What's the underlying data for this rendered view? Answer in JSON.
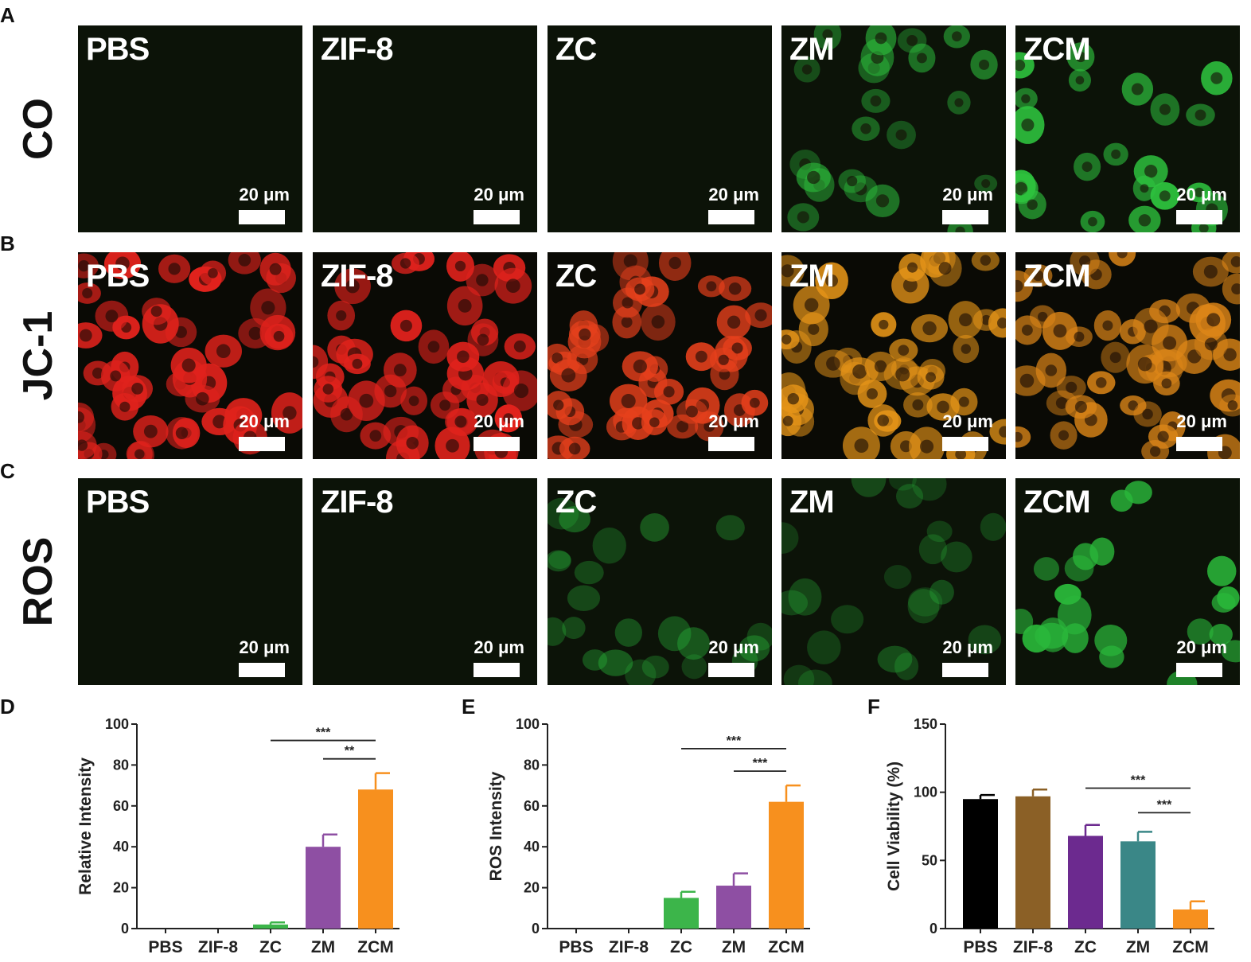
{
  "panel_letters": [
    "A",
    "B",
    "C",
    "D",
    "E",
    "F"
  ],
  "rows": [
    {
      "label": "CO",
      "color": "#2ec23e",
      "panels": [
        {
          "name": "PBS",
          "level": 0
        },
        {
          "name": "ZIF-8",
          "level": 0
        },
        {
          "name": "ZC",
          "level": 0
        },
        {
          "name": "ZM",
          "level": 0.6
        },
        {
          "name": "ZCM",
          "level": 0.95
        }
      ]
    },
    {
      "label": "JC-1",
      "color": "#e0221c",
      "panels": [
        {
          "name": "PBS",
          "level": 1,
          "tone": "#e0221c"
        },
        {
          "name": "ZIF-8",
          "level": 1,
          "tone": "#e0221c"
        },
        {
          "name": "ZC",
          "level": 0.9,
          "tone": "#e6401c"
        },
        {
          "name": "ZM",
          "level": 0.9,
          "tone": "#e59418"
        },
        {
          "name": "ZCM",
          "level": 0.85,
          "tone": "#dd8618"
        }
      ]
    },
    {
      "label": "ROS",
      "color": "#2ab73a",
      "panels": [
        {
          "name": "PBS",
          "level": 0
        },
        {
          "name": "ZIF-8",
          "level": 0
        },
        {
          "name": "ZC",
          "level": 0.45
        },
        {
          "name": "ZM",
          "level": 0.35
        },
        {
          "name": "ZCM",
          "level": 0.95
        }
      ]
    }
  ],
  "scalebar_label": "20 μm",
  "chart_data": [
    {
      "type": "bar",
      "panel": "D",
      "categories": [
        "PBS",
        "ZIF-8",
        "ZC",
        "ZM",
        "ZCM"
      ],
      "values": [
        0,
        0,
        2,
        40,
        68
      ],
      "errors": [
        0,
        0,
        1,
        6,
        8
      ],
      "colors": [
        "#000000",
        "#000000",
        "#3cb54a",
        "#8e4fa3",
        "#f7901e"
      ],
      "ylabel": "Relative Intensity",
      "ylim": [
        0,
        100
      ],
      "yticks": [
        0,
        20,
        40,
        60,
        80,
        100
      ],
      "significance": [
        {
          "from": 2,
          "to": 4,
          "label": "***",
          "y": 92
        },
        {
          "from": 3,
          "to": 4,
          "label": "**",
          "y": 83
        }
      ]
    },
    {
      "type": "bar",
      "panel": "E",
      "categories": [
        "PBS",
        "ZIF-8",
        "ZC",
        "ZM",
        "ZCM"
      ],
      "values": [
        0,
        0,
        15,
        21,
        62
      ],
      "errors": [
        0,
        0,
        3,
        6,
        8
      ],
      "colors": [
        "#000000",
        "#000000",
        "#3cb54a",
        "#8e4fa3",
        "#f7901e"
      ],
      "ylabel": "ROS Intensity",
      "ylim": [
        0,
        100
      ],
      "yticks": [
        0,
        20,
        40,
        60,
        80,
        100
      ],
      "significance": [
        {
          "from": 2,
          "to": 4,
          "label": "***",
          "y": 88
        },
        {
          "from": 3,
          "to": 4,
          "label": "***",
          "y": 77
        }
      ]
    },
    {
      "type": "bar",
      "panel": "F",
      "categories": [
        "PBS",
        "ZIF-8",
        "ZC",
        "ZM",
        "ZCM"
      ],
      "values": [
        95,
        97,
        68,
        64,
        14
      ],
      "errors": [
        3,
        5,
        8,
        7,
        6
      ],
      "colors": [
        "#000000",
        "#8b6026",
        "#6c2a8f",
        "#3a8787",
        "#f7901e"
      ],
      "ylabel": "Cell Viability (%)",
      "ylim": [
        0,
        150
      ],
      "yticks": [
        0,
        50,
        100,
        150
      ],
      "significance": [
        {
          "from": 2,
          "to": 4,
          "label": "***",
          "y": 103
        },
        {
          "from": 3,
          "to": 4,
          "label": "***",
          "y": 85
        }
      ]
    }
  ]
}
